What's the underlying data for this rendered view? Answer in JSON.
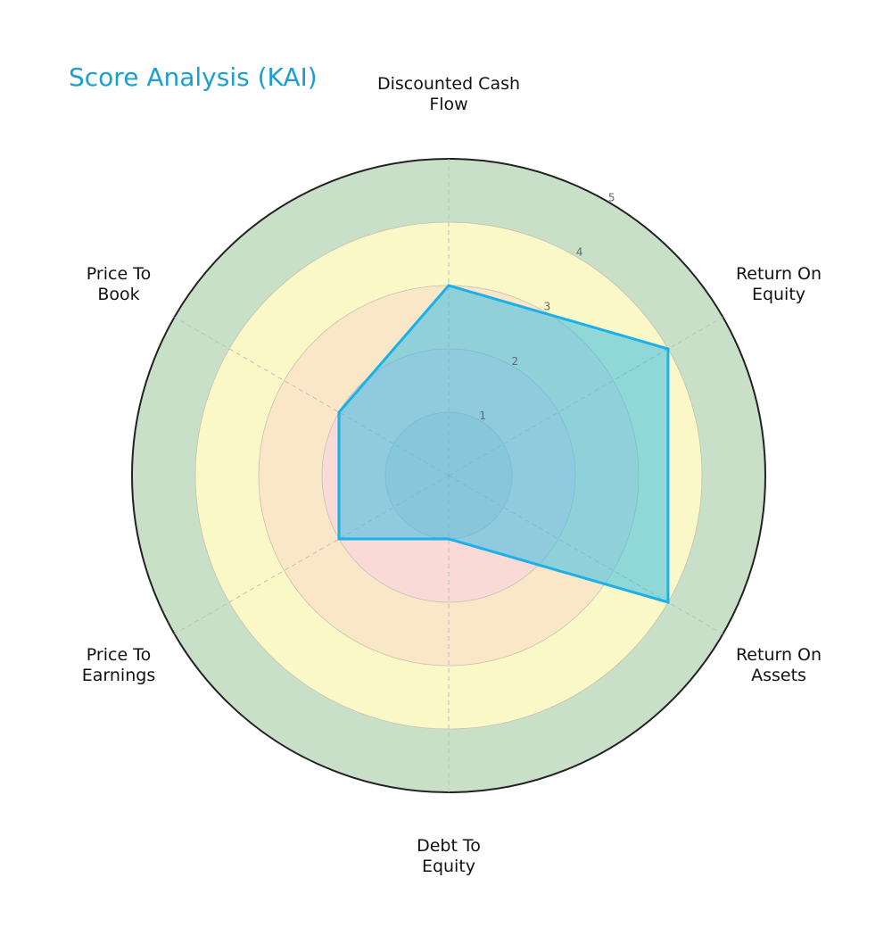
{
  "title": "Score Analysis (KAI)",
  "chart_data": {
    "type": "radar",
    "title": "Score Analysis (KAI)",
    "categories": [
      "Discounted Cash Flow",
      "Return On Equity",
      "Return On Assets",
      "Debt To Equity",
      "Price To Earnings",
      "Price To Book"
    ],
    "labels_display": [
      "Discounted Cash\nFlow",
      "Return On\nEquity",
      "Return On\nAssets",
      "Debt To\nEquity",
      "Price To\nEarnings",
      "Price To\nBook"
    ],
    "series": [
      {
        "name": "KAI",
        "values": [
          3,
          4,
          4,
          1,
          2,
          2
        ],
        "color": "#1ab0ea"
      }
    ],
    "rlim": [
      0,
      5
    ],
    "r_ticks": [
      "1",
      "2",
      "3",
      "4",
      "5"
    ],
    "bands": [
      {
        "from": 0,
        "to": 2,
        "color": "#f9dad7"
      },
      {
        "from": 2,
        "to": 3,
        "color": "#fae7c8"
      },
      {
        "from": 3,
        "to": 4,
        "color": "#fbf8c8"
      },
      {
        "from": 4,
        "to": 5,
        "color": "#c8e0c8"
      }
    ],
    "grid": true
  }
}
